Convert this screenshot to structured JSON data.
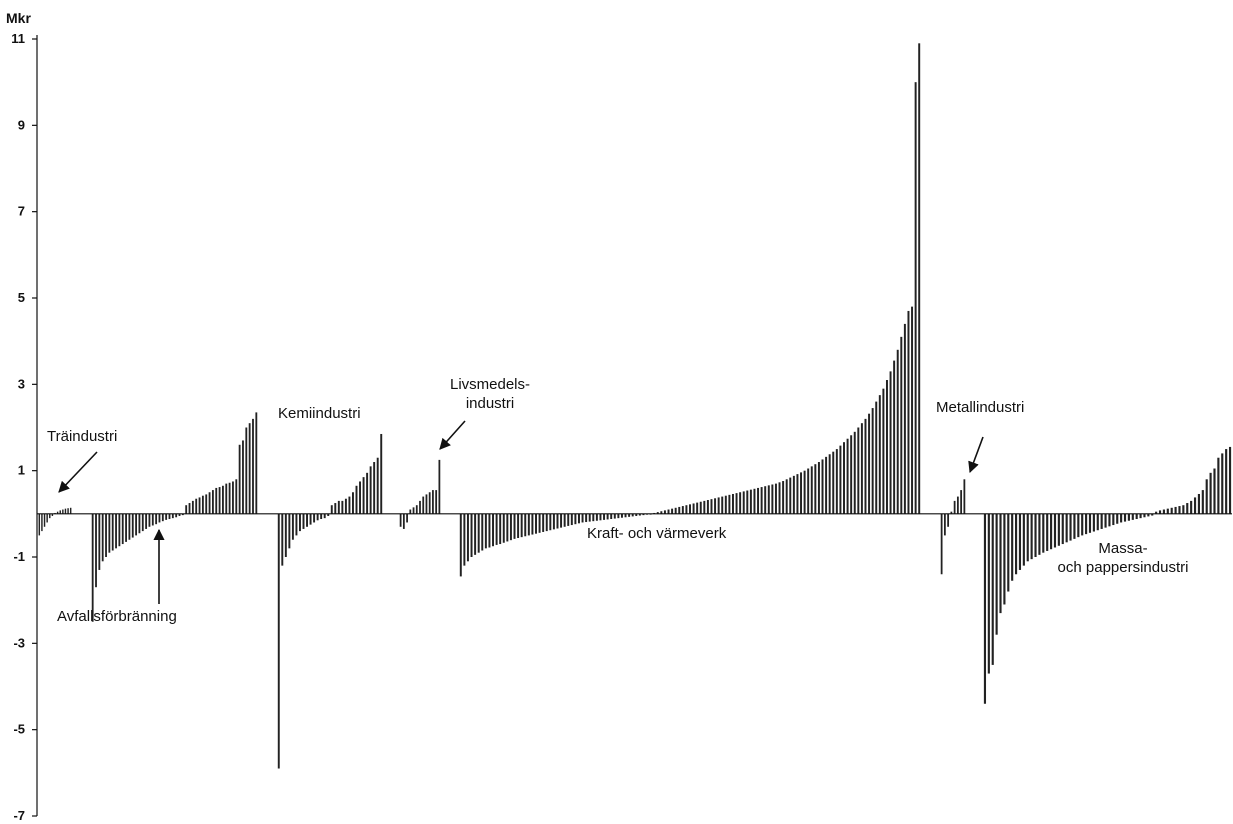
{
  "chart_data": {
    "type": "bar",
    "ylabel": "Mkr",
    "ylim": [
      -7,
      11
    ],
    "yticks": [
      11,
      9,
      7,
      5,
      3,
      1,
      -1,
      -3,
      -5,
      -7
    ],
    "grid": false,
    "legend": "none",
    "bar_color": "#222222",
    "groups": [
      {
        "name": "Träindustri",
        "values": [
          -0.5,
          -0.4,
          -0.3,
          -0.2,
          -0.1,
          -0.05,
          0.02,
          0.05,
          0.08,
          0.1,
          0.12,
          0.13,
          0.14
        ]
      },
      {
        "name": "Avfallsförbränning",
        "values": [
          -2.5,
          -1.7,
          -1.3,
          -1.1,
          -1.0,
          -0.9,
          -0.85,
          -0.8,
          -0.75,
          -0.7,
          -0.65,
          -0.6,
          -0.55,
          -0.5,
          -0.45,
          -0.4,
          -0.35,
          -0.3,
          -0.27,
          -0.24,
          -0.2,
          -0.17,
          -0.14,
          -0.12,
          -0.1,
          -0.08,
          -0.05,
          -0.03,
          0.2,
          0.25,
          0.3,
          0.35,
          0.38,
          0.42,
          0.45,
          0.5,
          0.55,
          0.6,
          0.62,
          0.65,
          0.7,
          0.72,
          0.75,
          0.8,
          1.6,
          1.7,
          2.0,
          2.1,
          2.2,
          2.35
        ]
      },
      {
        "name": "Kemiindustri",
        "values": [
          -5.9,
          -1.2,
          -1.0,
          -0.8,
          -0.6,
          -0.5,
          -0.4,
          -0.35,
          -0.3,
          -0.25,
          -0.2,
          -0.15,
          -0.12,
          -0.1,
          -0.05,
          0.2,
          0.25,
          0.3,
          0.3,
          0.35,
          0.4,
          0.5,
          0.65,
          0.75,
          0.85,
          0.95,
          1.1,
          1.2,
          1.3,
          1.85
        ]
      },
      {
        "name": "Livsmedelsindustri",
        "values": [
          -0.3,
          -0.35,
          -0.2,
          0.1,
          0.15,
          0.2,
          0.3,
          0.4,
          0.45,
          0.5,
          0.55,
          0.55,
          1.25
        ]
      },
      {
        "name": "Kraft- och värmeverk",
        "values": [
          -1.45,
          -1.2,
          -1.1,
          -1.0,
          -0.95,
          -0.9,
          -0.85,
          -0.8,
          -0.78,
          -0.75,
          -0.72,
          -0.7,
          -0.67,
          -0.64,
          -0.61,
          -0.58,
          -0.56,
          -0.54,
          -0.52,
          -0.5,
          -0.48,
          -0.46,
          -0.44,
          -0.42,
          -0.4,
          -0.38,
          -0.36,
          -0.34,
          -0.32,
          -0.3,
          -0.28,
          -0.26,
          -0.24,
          -0.22,
          -0.2,
          -0.19,
          -0.18,
          -0.17,
          -0.16,
          -0.15,
          -0.14,
          -0.13,
          -0.12,
          -0.11,
          -0.1,
          -0.09,
          -0.08,
          -0.07,
          -0.06,
          -0.05,
          -0.04,
          -0.03,
          -0.02,
          -0.01,
          0.02,
          0.04,
          0.06,
          0.08,
          0.1,
          0.12,
          0.14,
          0.16,
          0.18,
          0.2,
          0.22,
          0.24,
          0.26,
          0.28,
          0.3,
          0.32,
          0.34,
          0.36,
          0.38,
          0.4,
          0.42,
          0.44,
          0.46,
          0.48,
          0.5,
          0.52,
          0.54,
          0.56,
          0.58,
          0.6,
          0.62,
          0.64,
          0.66,
          0.68,
          0.7,
          0.73,
          0.76,
          0.8,
          0.84,
          0.88,
          0.92,
          0.96,
          1.0,
          1.05,
          1.1,
          1.15,
          1.2,
          1.26,
          1.32,
          1.38,
          1.44,
          1.5,
          1.58,
          1.66,
          1.74,
          1.82,
          1.9,
          2.0,
          2.1,
          2.2,
          2.32,
          2.45,
          2.6,
          2.75,
          2.9,
          3.1,
          3.3,
          3.55,
          3.8,
          4.1,
          4.4,
          4.7,
          4.8,
          10.0,
          10.9
        ]
      },
      {
        "name": "Metallindustri",
        "values": [
          -1.4,
          -0.5,
          -0.3,
          0.05,
          0.3,
          0.4,
          0.55,
          0.8
        ]
      },
      {
        "name": "Massa- och pappersindustri",
        "values": [
          -4.4,
          -3.7,
          -3.5,
          -2.8,
          -2.3,
          -2.1,
          -1.8,
          -1.55,
          -1.4,
          -1.3,
          -1.2,
          -1.1,
          -1.05,
          -1.0,
          -0.95,
          -0.9,
          -0.86,
          -0.82,
          -0.78,
          -0.74,
          -0.7,
          -0.66,
          -0.62,
          -0.58,
          -0.54,
          -0.5,
          -0.47,
          -0.44,
          -0.41,
          -0.38,
          -0.35,
          -0.32,
          -0.29,
          -0.26,
          -0.23,
          -0.2,
          -0.18,
          -0.16,
          -0.14,
          -0.12,
          -0.1,
          -0.08,
          -0.06,
          -0.04,
          0.05,
          0.08,
          0.1,
          0.12,
          0.14,
          0.16,
          0.18,
          0.2,
          0.25,
          0.3,
          0.38,
          0.46,
          0.55,
          0.8,
          0.95,
          1.05,
          1.3,
          1.4,
          1.5,
          1.55
        ]
      }
    ],
    "annotations": [
      {
        "lines": [
          "Träindustri"
        ],
        "arrow": true
      },
      {
        "lines": [
          "Avfallsförbränning"
        ],
        "arrow": true
      },
      {
        "lines": [
          "Kemiindustri"
        ],
        "arrow": false
      },
      {
        "lines": [
          "Livsmedels-",
          "industri"
        ],
        "arrow": true
      },
      {
        "lines": [
          "Kraft- och värmeverk"
        ],
        "arrow": false
      },
      {
        "lines": [
          "Metallindustri"
        ],
        "arrow": true
      },
      {
        "lines": [
          "Massa-",
          "och pappersindustri"
        ],
        "arrow": false
      }
    ]
  }
}
